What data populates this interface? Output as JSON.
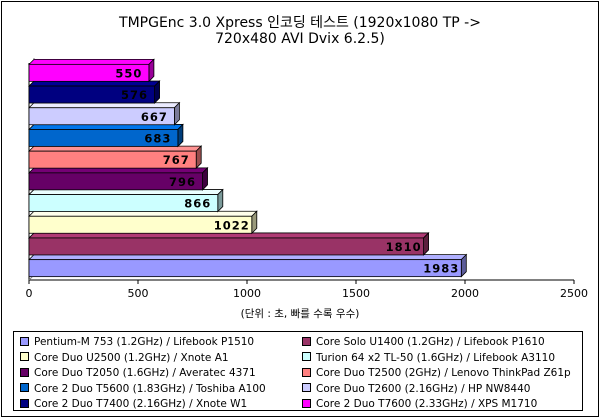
{
  "chart_data": {
    "type": "bar",
    "orientation": "horizontal",
    "title": "TMPGEnc 3.0 Xpress 인코딩 테스트 (1920x1080 TP ->",
    "subtitle": "720x480 AVI Dvix 6.2.5)",
    "xlabel": "(단위 : 초, 빠를 수록 우수)",
    "ylabel": "",
    "xlim": [
      0,
      2500
    ],
    "xticks": [
      "0",
      "500",
      "1000",
      "1500",
      "2000",
      "2500"
    ],
    "grid": false,
    "legend_position": "bottom",
    "series": [
      {
        "name": "Pentium-M 753 (1.2GHz) / Lifebook P1510",
        "value": 1983,
        "color": "#9999ff"
      },
      {
        "name": "Core Solo U1400 (1.2GHz) / Lifebook P1610",
        "value": 1810,
        "color": "#993366"
      },
      {
        "name": "Core Duo U2500 (1.2GHz) / Xnote A1",
        "value": 1022,
        "color": "#ffffcc"
      },
      {
        "name": "Turion 64 x2 TL-50 (1.6GHz) / Lifebook A3110",
        "value": 866,
        "color": "#ccffff"
      },
      {
        "name": "Core Duo T2050 (1.6GHz) / Averatec 4371",
        "value": 796,
        "color": "#660066"
      },
      {
        "name": "Core Duo T2500 (2GHz) / Lenovo ThinkPad Z61p",
        "value": 767,
        "color": "#ff8080"
      },
      {
        "name": "Core 2 Duo T5600 (1.83GHz) / Toshiba A100",
        "value": 683,
        "color": "#0066cc"
      },
      {
        "name": "Core Duo T2600 (2.16GHz) / HP NW8440",
        "value": 667,
        "color": "#ccccff"
      },
      {
        "name": "Core 2 Duo T7400 (2.16GHz) / Xnote W1",
        "value": 576,
        "color": "#000080"
      },
      {
        "name": "Core 2 Duo T7600 (2.33GHz) / XPS M1710",
        "value": 550,
        "color": "#ff00ff"
      }
    ],
    "data_labels": [
      "1983",
      "1810",
      "1022",
      "866",
      "796",
      "767",
      "683",
      "667",
      "576",
      "550"
    ]
  }
}
